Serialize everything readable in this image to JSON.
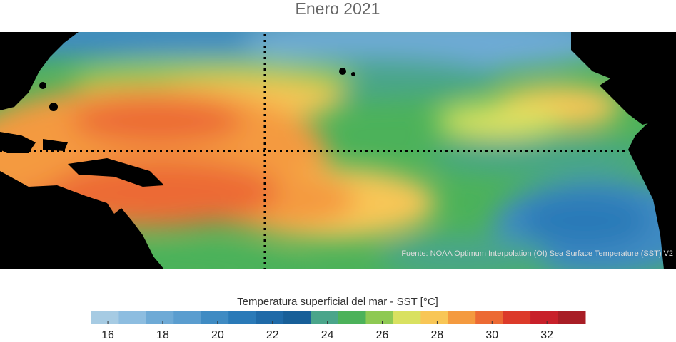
{
  "title": "Enero 2021",
  "source": "Fuente: NOAA Optimum Interpolation (OI) Sea Surface Temperature (SST) V2",
  "colorbar": {
    "label": "Temperatura superficial del mar - SST  [°C]",
    "bins": [
      15.4,
      16.4,
      17.4,
      18.4,
      19.4,
      20.4,
      21.4,
      22.4,
      23.4,
      24.4,
      25.4,
      26.4,
      27.4,
      28.4,
      29.4,
      30.4,
      31.4,
      32.4,
      33.4
    ],
    "colors": [
      "#a6cbe3",
      "#8dbde0",
      "#6eaad6",
      "#5a9dcf",
      "#3f8bc3",
      "#2a7ab8",
      "#1f6aa8",
      "#185f98",
      "#4aa58a",
      "#4cb25a",
      "#8ec953",
      "#d9e160",
      "#f8c656",
      "#f49a3f",
      "#ec6a34",
      "#dc3a2a",
      "#c8202a",
      "#a81d25"
    ],
    "ticks": [
      16,
      18,
      20,
      22,
      24,
      26,
      28,
      30,
      32
    ]
  }
}
